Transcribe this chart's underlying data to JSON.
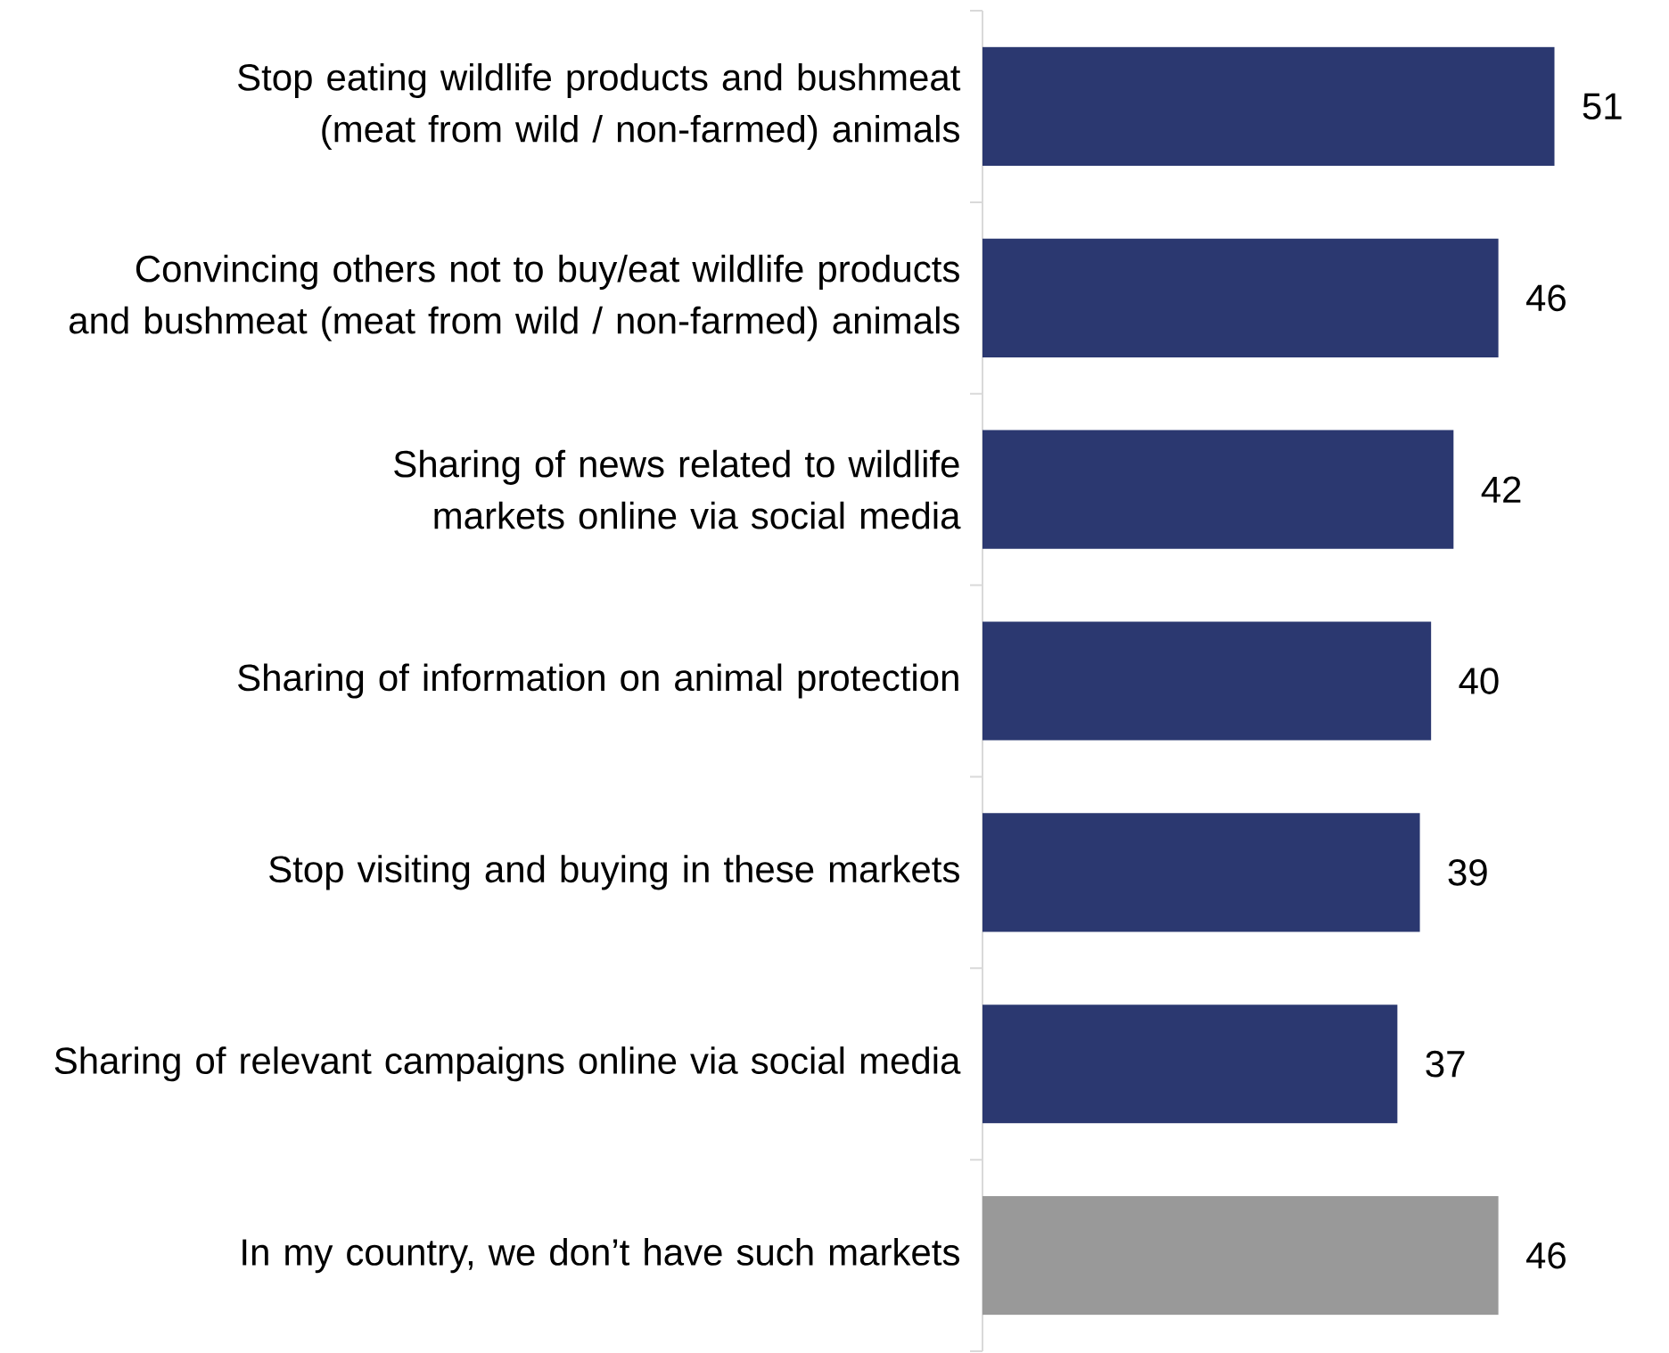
{
  "chart_data": {
    "type": "bar",
    "orientation": "horizontal",
    "data_labels": true,
    "categories": [
      "Stop eating wildlife products and bushmeat (meat from wild / non-farmed) animals",
      "Convincing others not to buy/eat wildlife products and bushmeat (meat from wild / non-farmed) animals",
      "Sharing of news related to wildlife markets online via social media",
      "Sharing of information on animal protection",
      "Stop visiting and buying in these markets",
      "Sharing of relevant campaigns online via social media",
      "In my country, we don’t have such markets"
    ],
    "values": [
      51,
      46,
      42,
      40,
      39,
      37,
      46
    ],
    "colors": [
      "#2b3870",
      "#2b3870",
      "#2b3870",
      "#2b3870",
      "#2b3870",
      "#2b3870",
      "#999999"
    ]
  }
}
